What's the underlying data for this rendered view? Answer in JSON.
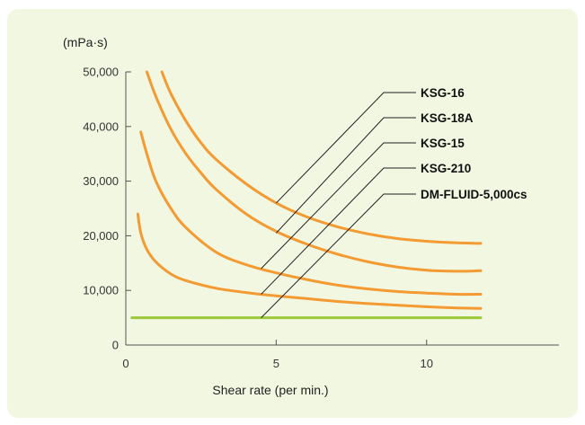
{
  "chart_data": {
    "type": "line",
    "title": "",
    "xlabel": "Shear rate (per min.)",
    "ylabel": "(mPa·s)",
    "xlim": [
      0,
      14.4
    ],
    "ylim": [
      0,
      50000
    ],
    "x_ticks": [
      {
        "value": 0,
        "label": "0"
      },
      {
        "value": 5,
        "label": "5"
      },
      {
        "value": 10,
        "label": "10"
      }
    ],
    "y_ticks": [
      {
        "value": 0,
        "label": "0"
      },
      {
        "value": 10000,
        "label": "10,000"
      },
      {
        "value": 20000,
        "label": "20,000"
      },
      {
        "value": 30000,
        "label": "30,000"
      },
      {
        "value": 40000,
        "label": "40,000"
      },
      {
        "value": 50000,
        "label": "50,000"
      }
    ],
    "grid": false,
    "legend": "leader-line labels, upper right",
    "series": [
      {
        "name": "KSG-16",
        "color": "#f39a32",
        "label_point": [
          5,
          26000
        ],
        "points": [
          [
            1.2,
            50000
          ],
          [
            1.5,
            46000
          ],
          [
            2,
            41000
          ],
          [
            2.5,
            37000
          ],
          [
            3,
            34000
          ],
          [
            4,
            29500
          ],
          [
            5,
            26000
          ],
          [
            6,
            23500
          ],
          [
            7,
            21700
          ],
          [
            8,
            20400
          ],
          [
            9,
            19500
          ],
          [
            10,
            19000
          ],
          [
            11,
            18700
          ],
          [
            11.8,
            18600
          ]
        ]
      },
      {
        "name": "KSG-18A",
        "color": "#f39a32",
        "label_point": [
          5,
          20500
        ],
        "points": [
          [
            0.7,
            50000
          ],
          [
            1,
            45500
          ],
          [
            1.5,
            39500
          ],
          [
            2,
            35000
          ],
          [
            2.5,
            31500
          ],
          [
            3,
            28500
          ],
          [
            4,
            24000
          ],
          [
            5,
            20800
          ],
          [
            6,
            18500
          ],
          [
            7,
            16700
          ],
          [
            8,
            15300
          ],
          [
            9,
            14300
          ],
          [
            10,
            13700
          ],
          [
            11,
            13500
          ],
          [
            11.8,
            13600
          ]
        ]
      },
      {
        "name": "KSG-15",
        "color": "#f39a32",
        "label_point": [
          4.5,
          14000
        ],
        "points": [
          [
            0.5,
            39000
          ],
          [
            0.7,
            35000
          ],
          [
            1,
            30000
          ],
          [
            1.5,
            25000
          ],
          [
            2,
            21500
          ],
          [
            3,
            17000
          ],
          [
            4,
            14700
          ],
          [
            5,
            13200
          ],
          [
            6,
            12000
          ],
          [
            7,
            11000
          ],
          [
            8,
            10300
          ],
          [
            9,
            9800
          ],
          [
            10,
            9500
          ],
          [
            11,
            9300
          ],
          [
            11.8,
            9300
          ]
        ]
      },
      {
        "name": "KSG-210",
        "color": "#f39a32",
        "label_point": [
          4.5,
          9300
        ],
        "points": [
          [
            0.4,
            24000
          ],
          [
            0.5,
            20500
          ],
          [
            0.7,
            17500
          ],
          [
            1,
            15200
          ],
          [
            1.5,
            13000
          ],
          [
            2,
            11800
          ],
          [
            3,
            10400
          ],
          [
            4,
            9600
          ],
          [
            5,
            9000
          ],
          [
            6,
            8500
          ],
          [
            7,
            8000
          ],
          [
            8,
            7600
          ],
          [
            9,
            7300
          ],
          [
            10,
            7000
          ],
          [
            11,
            6800
          ],
          [
            11.8,
            6700
          ]
        ]
      },
      {
        "name": "DM-FLUID-5,000cs",
        "color": "#9cc83a",
        "label_point": [
          4.5,
          5000
        ],
        "points": [
          [
            0.2,
            5000
          ],
          [
            11.8,
            5000
          ]
        ]
      }
    ],
    "annotations": [
      "KSG-16",
      "KSG-18A",
      "KSG-15",
      "KSG-210",
      "DM-FLUID-5,000cs"
    ]
  }
}
